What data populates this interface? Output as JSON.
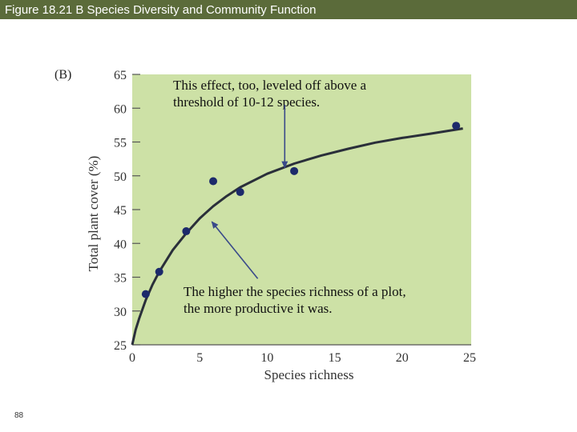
{
  "header": {
    "title": "Figure 18.21 B  Species Diversity and Community Function"
  },
  "footer": {
    "page_number": "88"
  },
  "colors": {
    "title_bar": "#5b6b3a",
    "plot_background": "#cde1a6",
    "points": "#1c2a6b",
    "curve": "#2a2f3a",
    "arrow": "#3a4a8a"
  },
  "chart_data": {
    "type": "scatter",
    "panel_label": "(B)",
    "xlabel": "Species richness",
    "ylabel": "Total plant cover (%)",
    "xlim": [
      0,
      25
    ],
    "ylim": [
      25,
      65
    ],
    "xticks": [
      0,
      5,
      10,
      15,
      20,
      25
    ],
    "yticks": [
      25,
      30,
      35,
      40,
      45,
      50,
      55,
      60,
      65
    ],
    "series": [
      {
        "name": "plots",
        "x": [
          1,
          2,
          4,
          6,
          8,
          12,
          24
        ],
        "y": [
          32.5,
          35.8,
          41.8,
          49.2,
          47.6,
          50.7,
          57.4
        ]
      }
    ],
    "fit_curve": {
      "name": "fitted curve",
      "x": [
        0,
        0.25,
        0.5,
        1,
        1.5,
        2,
        3,
        4,
        5,
        6,
        7,
        8,
        10,
        12,
        14,
        16,
        18,
        20,
        22,
        24.5
      ],
      "y": [
        25,
        27.2,
        28.8,
        31.6,
        33.9,
        35.8,
        39,
        41.5,
        43.7,
        45.5,
        47,
        48.3,
        50.3,
        51.8,
        53,
        54,
        54.9,
        55.6,
        56.2,
        57
      ]
    },
    "annotations": [
      {
        "text_lines": [
          "This effect, too, leveled off above a",
          "threshold of 10-12 species."
        ],
        "arrow_from": [
          11.3,
          60.5
        ],
        "arrow_to": [
          11.3,
          51.2
        ]
      },
      {
        "text_lines": [
          "The higher the species richness of a plot,",
          "the more productive it was."
        ],
        "arrow_from": [
          9.3,
          34.8
        ],
        "arrow_to": [
          5.9,
          43.2
        ]
      }
    ]
  }
}
